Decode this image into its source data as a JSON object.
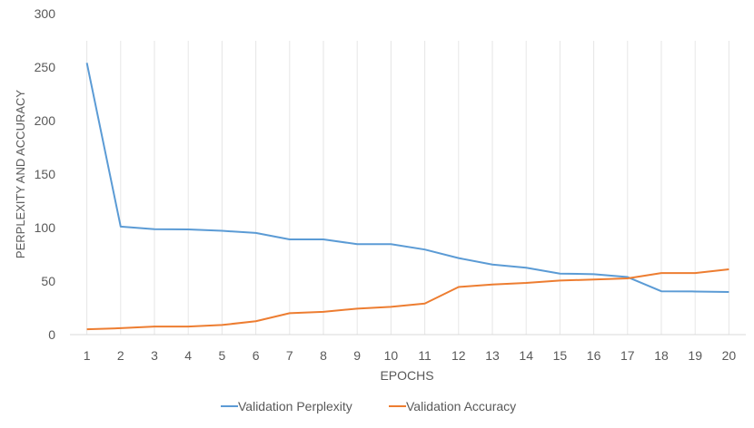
{
  "chart_data": {
    "type": "line",
    "title": "",
    "xlabel": "EPOCHS",
    "ylabel": "PERPLEXITY AND ACCURACY",
    "x": [
      1,
      2,
      3,
      4,
      5,
      6,
      7,
      8,
      9,
      10,
      11,
      12,
      13,
      14,
      15,
      16,
      17,
      18,
      19,
      20
    ],
    "ylim": [
      0,
      300
    ],
    "yticks": [
      0,
      50,
      100,
      150,
      200,
      250,
      300
    ],
    "grid": "vertical lines at each epoch",
    "legend_position": "bottom",
    "series": [
      {
        "name": "Validation Perplexity",
        "color": "#5B9BD5",
        "values": [
          254,
          101,
          98.5,
          98.3,
          97,
          95,
          89,
          89,
          84.5,
          84.5,
          79.5,
          71.5,
          65.5,
          62.5,
          57,
          56.5,
          53.8,
          40.5,
          40.3,
          39.8
        ]
      },
      {
        "name": "Validation Accuracy",
        "color": "#ED7D31",
        "values": [
          5,
          6,
          7.5,
          7.5,
          9,
          12.5,
          20,
          21.3,
          24.3,
          26,
          29,
          44.5,
          46.8,
          48.3,
          50.5,
          51.5,
          52.5,
          57.5,
          57.5,
          61
        ]
      }
    ]
  }
}
